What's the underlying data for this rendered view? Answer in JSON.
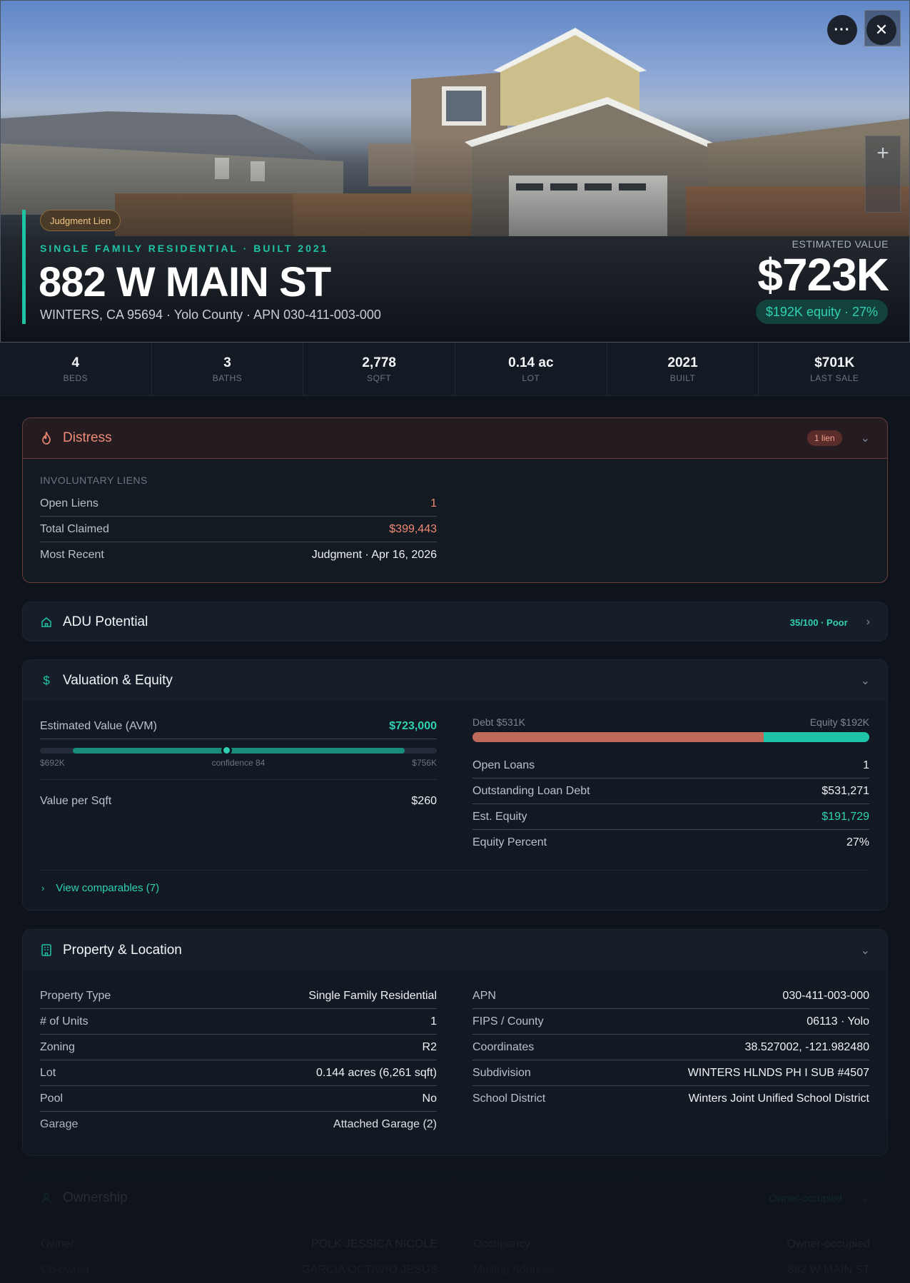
{
  "hero": {
    "badge": "Judgment Lien",
    "subtitle": "SINGLE FAMILY RESIDENTIAL · BUILT 2021",
    "title": "882 W MAIN ST",
    "address": "WINTERS, CA 95694 · Yolo County · APN 030-411-003-000",
    "estimated_label": "ESTIMATED VALUE",
    "estimated_value": "$723K",
    "equity_pill": "$192K equity · 27%",
    "more_icon": "more-horizontal-icon",
    "close_icon": "close-icon",
    "zoom_icon": "plus-icon"
  },
  "stats": [
    {
      "value": "4",
      "label": "BEDS"
    },
    {
      "value": "3",
      "label": "BATHS"
    },
    {
      "value": "2,778",
      "label": "SQFT"
    },
    {
      "value": "0.14 ac",
      "label": "LOT"
    },
    {
      "value": "2021",
      "label": "BUILT"
    },
    {
      "value": "$701K",
      "label": "LAST SALE"
    }
  ],
  "distress": {
    "title": "Distress",
    "icon": "flame-icon",
    "badge": "1 lien",
    "section_label": "INVOLUNTARY LIENS",
    "rows": [
      {
        "key": "Open Liens",
        "value": "1"
      },
      {
        "key": "Total Claimed",
        "value": "$399,443"
      },
      {
        "key": "Most Recent",
        "value": "Judgment · Apr 16, 2026"
      }
    ]
  },
  "adu": {
    "title": "ADU Potential",
    "icon": "home-icon",
    "score": "35/100 · Poor"
  },
  "valuation": {
    "title": "Valuation & Equity",
    "icon": "dollar-icon",
    "avm_key": "Estimated Value (AVM)",
    "avm_value": "$723,000",
    "avm_low": "$692K",
    "avm_confidence": "confidence 84",
    "avm_high": "$756K",
    "avm_position": 0.47,
    "value_per_sqft_key": "Value per Sqft",
    "value_per_sqft": "$260",
    "debt_label": "Debt $531K",
    "equity_label": "Equity $192K",
    "debt_fraction": 0.734,
    "rows": [
      {
        "key": "Open Loans",
        "value": "1"
      },
      {
        "key": "Outstanding Loan Debt",
        "value": "$531,271"
      },
      {
        "key": "Est. Equity",
        "value": "$191,729"
      },
      {
        "key": "Equity Percent",
        "value": "27%"
      }
    ],
    "comparables_link": "View comparables (7)"
  },
  "property": {
    "title": "Property & Location",
    "icon": "building-icon",
    "left": [
      {
        "key": "Property Type",
        "value": "Single Family Residential"
      },
      {
        "key": "# of Units",
        "value": "1"
      },
      {
        "key": "Zoning",
        "value": "R2"
      },
      {
        "key": "Lot",
        "value": "0.144 acres (6,261 sqft)"
      },
      {
        "key": "Pool",
        "value": "No"
      },
      {
        "key": "Garage",
        "value": "Attached Garage (2)"
      }
    ],
    "right": [
      {
        "key": "APN",
        "value": "030-411-003-000"
      },
      {
        "key": "FIPS / County",
        "value": "06113 · Yolo"
      },
      {
        "key": "Coordinates",
        "value": "38.527002, -121.982480"
      },
      {
        "key": "Subdivision",
        "value": "WINTERS HLNDS PH I SUB #4507"
      },
      {
        "key": "School District",
        "value": "Winters Joint Unified School District"
      }
    ]
  },
  "ownership": {
    "title": "Ownership",
    "icon": "user-icon",
    "badge": "Owner-occupied",
    "left": [
      {
        "key": "Owner",
        "value": "POLK JESSICA NICOLE"
      },
      {
        "key": "Co-owner",
        "value": "GARCIA OCTAVIO JESUS"
      }
    ],
    "right": [
      {
        "key": "Occupancy",
        "value": "Owner-occupied"
      },
      {
        "key": "Mailing Address",
        "value": "882 W MAIN ST"
      }
    ]
  },
  "colors": {
    "accent": "#1fc4a6",
    "danger": "#f08a75",
    "background": "#0f141c"
  }
}
